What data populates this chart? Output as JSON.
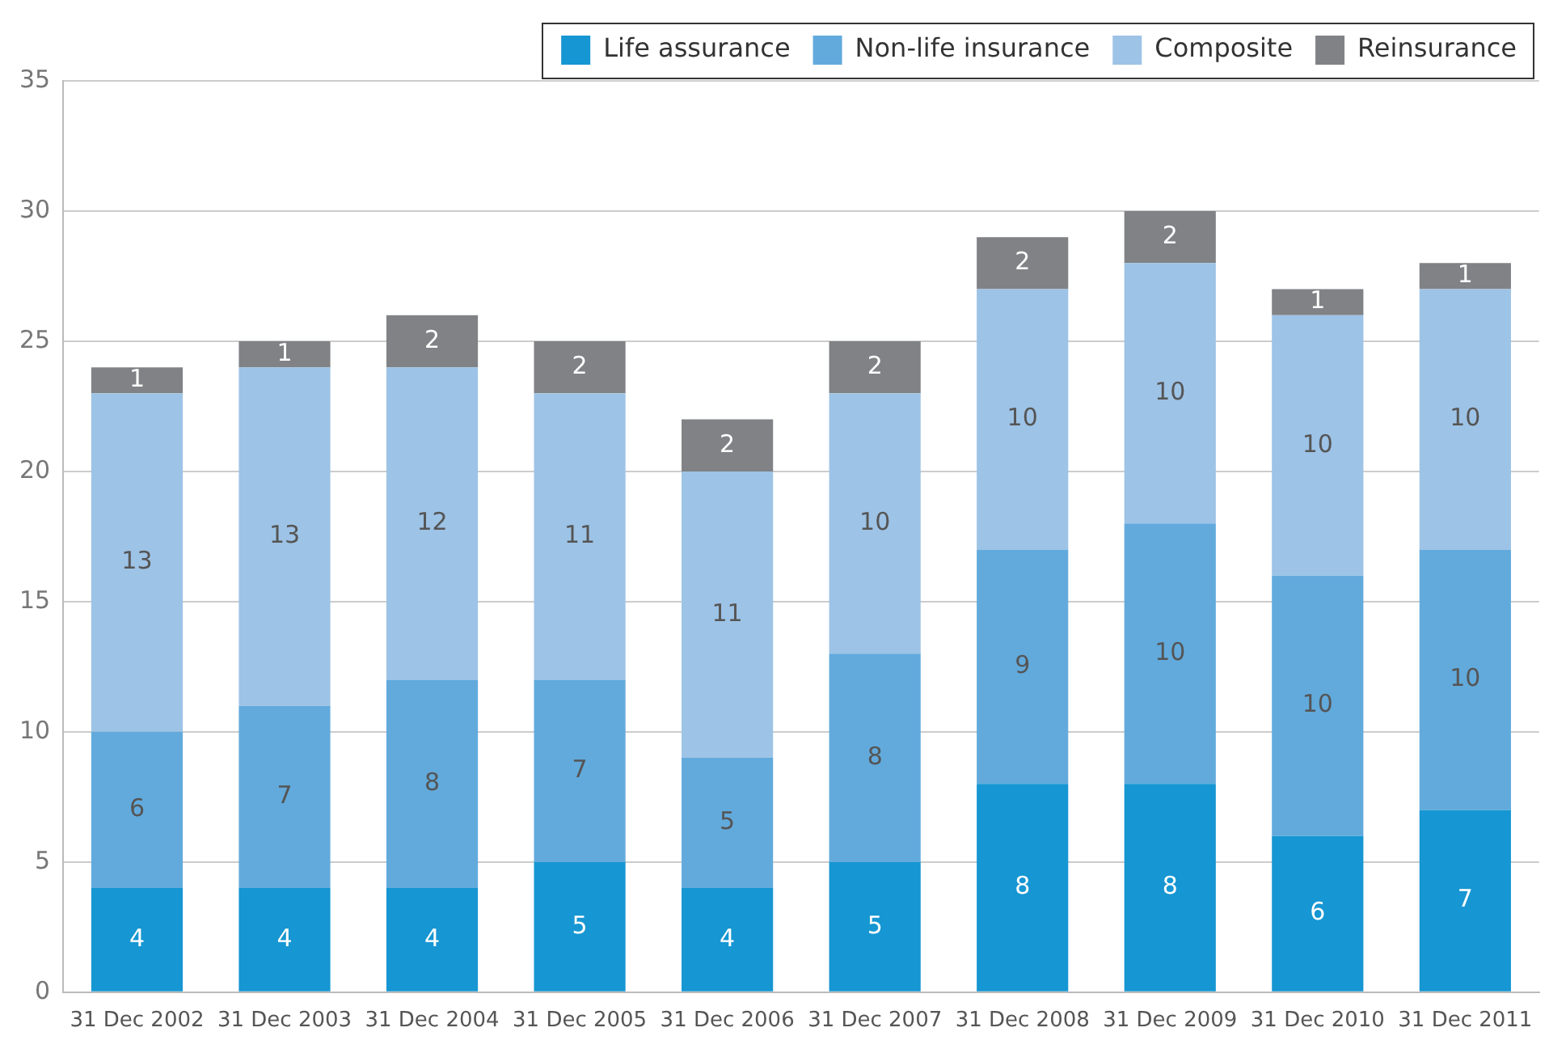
{
  "chart_data": {
    "type": "bar",
    "stacked": true,
    "categories": [
      "31 Dec 2002",
      "31 Dec 2003",
      "31 Dec 2004",
      "31 Dec 2005",
      "31 Dec 2006",
      "31 Dec 2007",
      "31 Dec 2008",
      "31 Dec 2009",
      "31 Dec 2010",
      "31 Dec 2011"
    ],
    "series": [
      {
        "name": "Life assurance",
        "color": "#1696d2",
        "values": [
          4,
          4,
          4,
          5,
          4,
          5,
          8,
          8,
          6,
          7
        ]
      },
      {
        "name": "Non-life insurance",
        "color": "#62aadc",
        "values": [
          6,
          7,
          8,
          7,
          5,
          8,
          9,
          10,
          10,
          10
        ]
      },
      {
        "name": "Composite",
        "color": "#9dc3e6",
        "values": [
          13,
          13,
          12,
          11,
          11,
          10,
          10,
          10,
          10,
          10
        ]
      },
      {
        "name": "Reinsurance",
        "color": "#808285",
        "values": [
          1,
          1,
          2,
          2,
          2,
          2,
          2,
          2,
          1,
          1
        ]
      }
    ],
    "ylim": [
      0,
      35
    ],
    "yticks": [
      0,
      5,
      10,
      15,
      20,
      25,
      30,
      35
    ],
    "grid": "y",
    "legend": "top right",
    "data_labels": true
  }
}
